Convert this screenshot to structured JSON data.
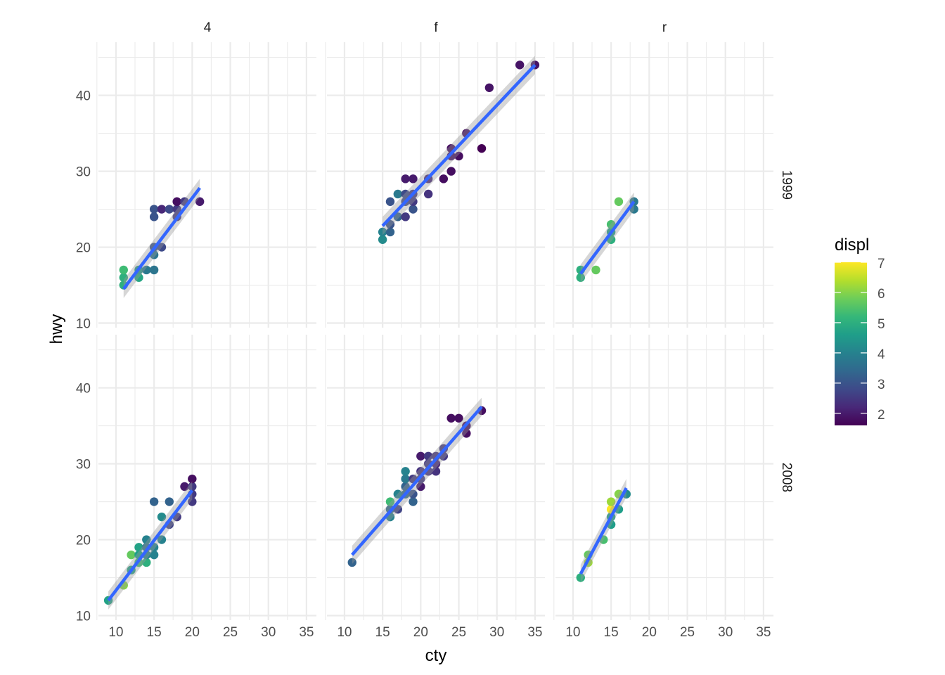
{
  "chart_data": {
    "type": "scatter",
    "xlabel": "cty",
    "ylabel": "hwy",
    "xlim": [
      7.7,
      36.3
    ],
    "ylim": [
      9.4,
      47.0
    ],
    "xticks": [
      10,
      15,
      20,
      25,
      30,
      35
    ],
    "yticks": [
      10,
      20,
      30,
      40
    ],
    "grid": true,
    "smooth_color": "#3366FF",
    "facet_cols": [
      "4",
      "f",
      "r"
    ],
    "facet_rows": [
      "1999",
      "2008"
    ],
    "legend": {
      "title": "displ",
      "placement": "right",
      "range": [
        1.6,
        7.0
      ],
      "ticks": [
        2,
        3,
        4,
        5,
        6,
        7
      ]
    },
    "panels": [
      {
        "col": "4",
        "row": "1999",
        "smooth": [
          [
            11,
            14.5
          ],
          [
            21,
            27.8
          ]
        ],
        "points": [
          [
            11,
            15,
            5.0
          ],
          [
            11,
            16,
            5.0
          ],
          [
            11,
            17,
            5.3
          ],
          [
            13,
            16,
            4.8
          ],
          [
            13,
            17,
            4.5
          ],
          [
            14,
            17,
            3.8
          ],
          [
            15,
            17,
            3.7
          ],
          [
            15,
            19,
            3.7
          ],
          [
            15,
            20,
            3.0
          ],
          [
            16,
            20,
            2.8
          ],
          [
            15,
            24,
            3.0
          ],
          [
            15,
            25,
            3.0
          ],
          [
            16,
            25,
            2.2
          ],
          [
            17,
            25,
            2.8
          ],
          [
            18,
            24,
            2.5
          ],
          [
            18,
            25,
            2.5
          ],
          [
            18,
            26,
            1.8
          ],
          [
            19,
            26,
            2.5
          ],
          [
            21,
            26,
            2.0
          ]
        ]
      },
      {
        "col": "f",
        "row": "1999",
        "smooth": [
          [
            15,
            22.8
          ],
          [
            35,
            44
          ]
        ],
        "points": [
          [
            15,
            21,
            4.2
          ],
          [
            15,
            22,
            4.0
          ],
          [
            16,
            22,
            3.3
          ],
          [
            16,
            23,
            3.0
          ],
          [
            16,
            26,
            3.0
          ],
          [
            17,
            24,
            3.3
          ],
          [
            17,
            27,
            3.8
          ],
          [
            18,
            24,
            2.5
          ],
          [
            18,
            26,
            2.8
          ],
          [
            18,
            27,
            2.8
          ],
          [
            18,
            29,
            2.0
          ],
          [
            19,
            25,
            3.0
          ],
          [
            19,
            26,
            2.5
          ],
          [
            19,
            27,
            2.5
          ],
          [
            19,
            29,
            2.0
          ],
          [
            21,
            27,
            2.4
          ],
          [
            21,
            29,
            2.2
          ],
          [
            23,
            29,
            1.8
          ],
          [
            24,
            30,
            1.8
          ],
          [
            24,
            32,
            1.8
          ],
          [
            24,
            33,
            1.8
          ],
          [
            25,
            32,
            1.8
          ],
          [
            26,
            35,
            1.8
          ],
          [
            28,
            33,
            1.6
          ],
          [
            29,
            41,
            1.9
          ],
          [
            33,
            44,
            1.9
          ],
          [
            35,
            44,
            1.9
          ]
        ]
      },
      {
        "col": "r",
        "row": "1999",
        "smooth": [
          [
            11,
            16.5
          ],
          [
            18,
            26
          ]
        ],
        "points": [
          [
            11,
            16,
            5.0
          ],
          [
            11,
            17,
            5.0
          ],
          [
            13,
            17,
            5.7
          ],
          [
            15,
            21,
            5.0
          ],
          [
            15,
            22,
            4.6
          ],
          [
            15,
            23,
            5.4
          ],
          [
            16,
            26,
            5.7
          ],
          [
            18,
            25,
            3.8
          ],
          [
            18,
            26,
            3.8
          ]
        ]
      },
      {
        "col": "4",
        "row": "2008",
        "smooth": [
          [
            9,
            12
          ],
          [
            20,
            26.5
          ]
        ],
        "points": [
          [
            9,
            12,
            4.7
          ],
          [
            11,
            14,
            6.0
          ],
          [
            12,
            16,
            4.7
          ],
          [
            12,
            18,
            5.7
          ],
          [
            13,
            17,
            5.3
          ],
          [
            13,
            18,
            4.6
          ],
          [
            13,
            19,
            4.7
          ],
          [
            14,
            17,
            5.0
          ],
          [
            14,
            18,
            4.0
          ],
          [
            14,
            19,
            3.7
          ],
          [
            14,
            20,
            4.0
          ],
          [
            15,
            18,
            4.0
          ],
          [
            15,
            19,
            4.0
          ],
          [
            15,
            25,
            3.3
          ],
          [
            16,
            20,
            4.0
          ],
          [
            16,
            23,
            4.2
          ],
          [
            17,
            22,
            2.7
          ],
          [
            17,
            25,
            3.3
          ],
          [
            18,
            23,
            2.5
          ],
          [
            19,
            27,
            2.0
          ],
          [
            20,
            25,
            2.5
          ],
          [
            20,
            26,
            2.5
          ],
          [
            20,
            27,
            2.5
          ],
          [
            20,
            28,
            1.8
          ]
        ]
      },
      {
        "col": "f",
        "row": "2008",
        "smooth": [
          [
            11,
            18
          ],
          [
            28,
            37.5
          ]
        ],
        "points": [
          [
            11,
            17,
            3.3
          ],
          [
            16,
            23,
            4.0
          ],
          [
            16,
            24,
            3.5
          ],
          [
            16,
            25,
            5.3
          ],
          [
            17,
            24,
            2.7
          ],
          [
            17,
            26,
            4.0
          ],
          [
            18,
            26,
            3.5
          ],
          [
            18,
            27,
            3.3
          ],
          [
            18,
            28,
            3.8
          ],
          [
            18,
            29,
            4.0
          ],
          [
            19,
            25,
            3.3
          ],
          [
            19,
            26,
            3.0
          ],
          [
            19,
            28,
            2.5
          ],
          [
            20,
            27,
            2.0
          ],
          [
            20,
            28,
            2.5
          ],
          [
            20,
            29,
            2.4
          ],
          [
            20,
            31,
            2.0
          ],
          [
            21,
            29,
            2.4
          ],
          [
            21,
            30,
            2.5
          ],
          [
            21,
            31,
            2.5
          ],
          [
            22,
            29,
            2.4
          ],
          [
            22,
            30,
            2.2
          ],
          [
            22,
            31,
            2.4
          ],
          [
            23,
            31,
            2.5
          ],
          [
            23,
            32,
            2.5
          ],
          [
            24,
            36,
            1.8
          ],
          [
            25,
            36,
            1.8
          ],
          [
            26,
            34,
            1.8
          ],
          [
            26,
            35,
            1.8
          ],
          [
            28,
            37,
            1.8
          ]
        ]
      },
      {
        "col": "r",
        "row": "2008",
        "smooth": [
          [
            11,
            15.5
          ],
          [
            17,
            26.8
          ]
        ],
        "points": [
          [
            11,
            15,
            5.0
          ],
          [
            12,
            17,
            6.2
          ],
          [
            12,
            18,
            5.7
          ],
          [
            14,
            20,
            5.4
          ],
          [
            15,
            22,
            4.6
          ],
          [
            15,
            23,
            4.6
          ],
          [
            15,
            24,
            7.0
          ],
          [
            15,
            25,
            6.2
          ],
          [
            16,
            24,
            4.6
          ],
          [
            16,
            26,
            6.0
          ],
          [
            17,
            26,
            4.2
          ]
        ]
      }
    ]
  }
}
